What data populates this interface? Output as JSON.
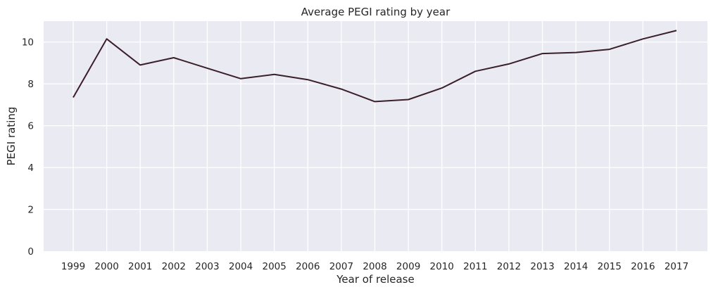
{
  "chart_data": {
    "type": "line",
    "title": "Average PEGI rating by year",
    "xlabel": "Year of release",
    "ylabel": "PEGI rating",
    "categories": [
      "1999",
      "2000",
      "2001",
      "2002",
      "2003",
      "2004",
      "2005",
      "2006",
      "2007",
      "2008",
      "2009",
      "2010",
      "2011",
      "2012",
      "2013",
      "2014",
      "2015",
      "2016",
      "2017"
    ],
    "series": [
      {
        "values": [
          7.35,
          10.15,
          8.9,
          9.25,
          8.75,
          8.25,
          8.45,
          8.2,
          7.75,
          7.15,
          7.25,
          7.8,
          8.6,
          8.95,
          9.45,
          9.5,
          9.65,
          10.15,
          10.55
        ],
        "color": "#3a1f2b"
      }
    ],
    "ylim": [
      0,
      11
    ],
    "yticks": [
      0,
      2,
      4,
      6,
      8,
      10
    ],
    "grid": true,
    "background": "#eaeaf2",
    "grid_color": "#ffffff"
  }
}
